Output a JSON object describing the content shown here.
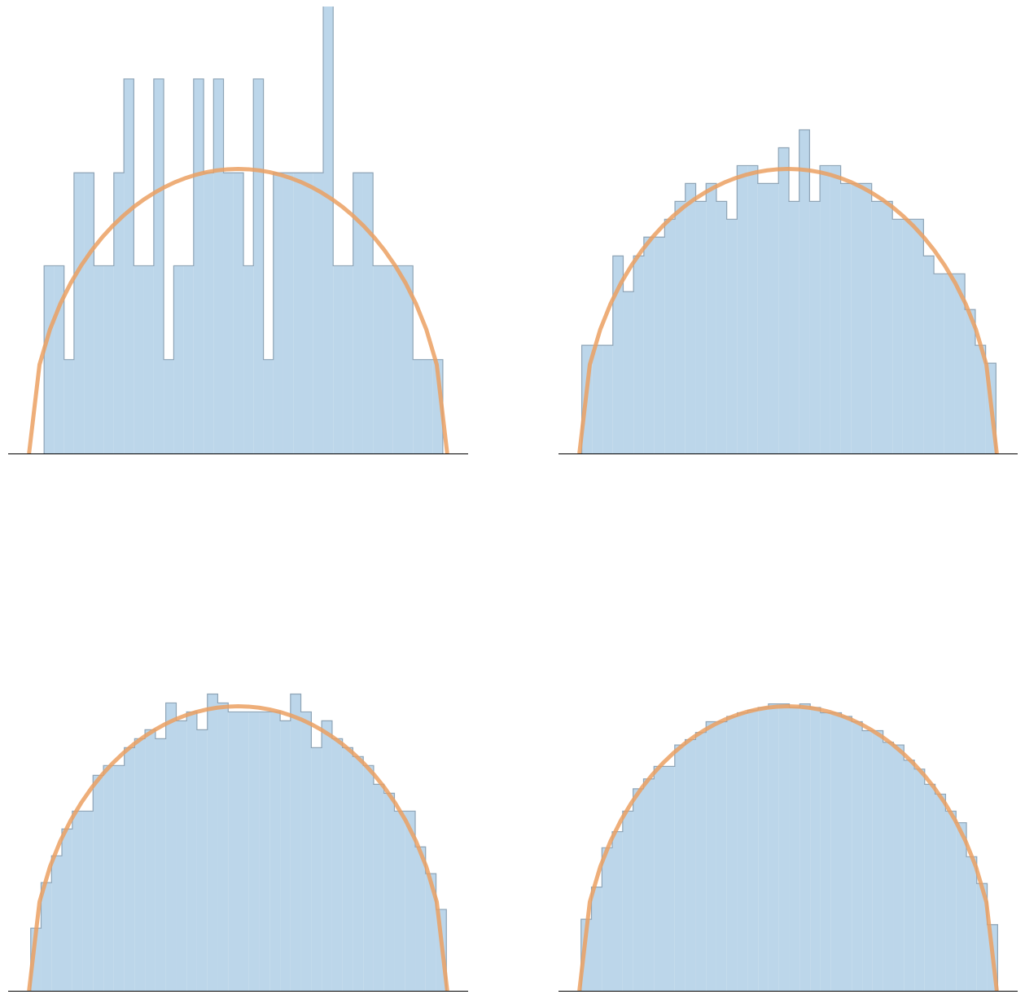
{
  "chart_data": [
    {
      "type": "histogram",
      "color": "#bcd6ea",
      "edge_color": "#8ea4b6",
      "xlim": [
        -2.2,
        2.2
      ],
      "ylim": [
        0,
        0.5
      ],
      "bins": [
        -1.856,
        -1.761,
        -1.665,
        -1.57,
        -1.475,
        -1.379,
        -1.284,
        -1.189,
        -1.093,
        -0.998,
        -0.903,
        -0.807,
        -0.712,
        -0.616,
        -0.521,
        -0.426,
        -0.33,
        -0.235,
        -0.14,
        -0.044,
        0.051,
        0.146,
        0.242,
        0.337,
        0.432,
        0.528,
        0.623,
        0.718,
        0.814,
        0.909,
        1.004,
        1.1,
        1.195,
        1.29,
        1.386,
        1.481,
        1.577,
        1.672,
        1.767,
        1.863,
        1.958
      ],
      "values": [
        0.21,
        0.21,
        0.105,
        0.314,
        0.314,
        0.21,
        0.21,
        0.314,
        0.419,
        0.21,
        0.21,
        0.419,
        0.105,
        0.21,
        0.21,
        0.419,
        0.314,
        0.419,
        0.314,
        0.314,
        0.21,
        0.419,
        0.105,
        0.314,
        0.314,
        0.314,
        0.314,
        0.314,
        0.524,
        0.21,
        0.21,
        0.314,
        0.314,
        0.21,
        0.21,
        0.21,
        0.21,
        0.105,
        0.105,
        0.105
      ],
      "line": {
        "color": "#eba062",
        "x": [
          -2,
          -1.9,
          -1.8,
          -1.7,
          -1.6,
          -1.5,
          -1.4,
          -1.3,
          -1.2,
          -1.1,
          -1,
          -0.9,
          -0.8,
          -0.7,
          -0.6,
          -0.5,
          -0.4,
          -0.3,
          -0.2,
          -0.1,
          0,
          0.1,
          0.2,
          0.3,
          0.4,
          0.5,
          0.6,
          0.7,
          0.8,
          0.9,
          1,
          1.1,
          1.2,
          1.3,
          1.4,
          1.5,
          1.6,
          1.7,
          1.8,
          1.9,
          2
        ],
        "y": [
          0,
          0.0994,
          0.1387,
          0.1677,
          0.191,
          0.2105,
          0.2273,
          0.2419,
          0.2546,
          0.2658,
          0.2757,
          0.2843,
          0.2917,
          0.2982,
          0.3037,
          0.3082,
          0.3119,
          0.3147,
          0.3167,
          0.3179,
          0.3183,
          0.3179,
          0.3167,
          0.3147,
          0.3119,
          0.3082,
          0.3037,
          0.2982,
          0.2917,
          0.2843,
          0.2757,
          0.2658,
          0.2546,
          0.2419,
          0.2273,
          0.2105,
          0.191,
          0.1677,
          0.1387,
          0.0994,
          0
        ]
      }
    },
    {
      "type": "histogram",
      "color": "#bcd6ea",
      "edge_color": "#8ea4b6",
      "xlim": [
        -2.2,
        2.2
      ],
      "ylim": [
        0,
        0.5
      ],
      "bins": [
        -1.977,
        -1.878,
        -1.778,
        -1.679,
        -1.58,
        -1.481,
        -1.382,
        -1.282,
        -1.183,
        -1.084,
        -0.985,
        -0.885,
        -0.786,
        -0.687,
        -0.588,
        -0.489,
        -0.389,
        -0.29,
        -0.191,
        -0.092,
        0.008,
        0.107,
        0.206,
        0.305,
        0.405,
        0.504,
        0.603,
        0.702,
        0.801,
        0.901,
        1.0,
        1.099,
        1.198,
        1.298,
        1.397,
        1.496,
        1.595,
        1.694,
        1.794,
        1.893,
        1.992
      ],
      "values": [
        0.121,
        0.121,
        0.121,
        0.221,
        0.181,
        0.221,
        0.242,
        0.242,
        0.262,
        0.282,
        0.302,
        0.282,
        0.302,
        0.282,
        0.262,
        0.322,
        0.322,
        0.302,
        0.302,
        0.342,
        0.282,
        0.362,
        0.282,
        0.322,
        0.322,
        0.302,
        0.302,
        0.302,
        0.282,
        0.282,
        0.262,
        0.262,
        0.262,
        0.221,
        0.201,
        0.201,
        0.201,
        0.161,
        0.121,
        0.101
      ],
      "line": {
        "color": "#eba062",
        "x": [
          -2,
          -1.9,
          -1.8,
          -1.7,
          -1.6,
          -1.5,
          -1.4,
          -1.3,
          -1.2,
          -1.1,
          -1,
          -0.9,
          -0.8,
          -0.7,
          -0.6,
          -0.5,
          -0.4,
          -0.3,
          -0.2,
          -0.1,
          0,
          0.1,
          0.2,
          0.3,
          0.4,
          0.5,
          0.6,
          0.7,
          0.8,
          0.9,
          1,
          1.1,
          1.2,
          1.3,
          1.4,
          1.5,
          1.6,
          1.7,
          1.8,
          1.9,
          2
        ],
        "y": [
          0,
          0.0994,
          0.1387,
          0.1677,
          0.191,
          0.2105,
          0.2273,
          0.2419,
          0.2546,
          0.2658,
          0.2757,
          0.2843,
          0.2917,
          0.2982,
          0.3037,
          0.3082,
          0.3119,
          0.3147,
          0.3167,
          0.3179,
          0.3183,
          0.3179,
          0.3167,
          0.3147,
          0.3119,
          0.3082,
          0.3037,
          0.2982,
          0.2917,
          0.2843,
          0.2757,
          0.2658,
          0.2546,
          0.2419,
          0.2273,
          0.2105,
          0.191,
          0.1677,
          0.1387,
          0.0994,
          0
        ]
      }
    },
    {
      "type": "histogram",
      "color": "#bcd6ea",
      "edge_color": "#8ea4b6",
      "xlim": [
        -2.2,
        2.2
      ],
      "ylim": [
        0,
        0.5
      ],
      "bins": [
        -1.984,
        -1.885,
        -1.785,
        -1.686,
        -1.586,
        -1.487,
        -1.388,
        -1.288,
        -1.189,
        -1.089,
        -0.99,
        -0.891,
        -0.791,
        -0.692,
        -0.592,
        -0.493,
        -0.394,
        -0.294,
        -0.195,
        -0.095,
        0.004,
        0.103,
        0.203,
        0.302,
        0.402,
        0.501,
        0.6,
        0.7,
        0.799,
        0.899,
        0.998,
        1.097,
        1.197,
        1.296,
        1.396,
        1.495,
        1.594,
        1.694,
        1.793,
        1.893,
        1.992
      ],
      "values": [
        0.07,
        0.121,
        0.151,
        0.181,
        0.201,
        0.201,
        0.241,
        0.252,
        0.252,
        0.272,
        0.282,
        0.292,
        0.282,
        0.322,
        0.302,
        0.312,
        0.292,
        0.332,
        0.322,
        0.312,
        0.312,
        0.312,
        0.312,
        0.312,
        0.302,
        0.332,
        0.312,
        0.272,
        0.302,
        0.282,
        0.272,
        0.262,
        0.252,
        0.231,
        0.221,
        0.201,
        0.201,
        0.161,
        0.131,
        0.091
      ],
      "line": {
        "color": "#eba062",
        "x": [
          -2,
          -1.9,
          -1.8,
          -1.7,
          -1.6,
          -1.5,
          -1.4,
          -1.3,
          -1.2,
          -1.1,
          -1,
          -0.9,
          -0.8,
          -0.7,
          -0.6,
          -0.5,
          -0.4,
          -0.3,
          -0.2,
          -0.1,
          0,
          0.1,
          0.2,
          0.3,
          0.4,
          0.5,
          0.6,
          0.7,
          0.8,
          0.9,
          1,
          1.1,
          1.2,
          1.3,
          1.4,
          1.5,
          1.6,
          1.7,
          1.8,
          1.9,
          2
        ],
        "y": [
          0,
          0.0994,
          0.1387,
          0.1677,
          0.191,
          0.2105,
          0.2273,
          0.2419,
          0.2546,
          0.2658,
          0.2757,
          0.2843,
          0.2917,
          0.2982,
          0.3037,
          0.3082,
          0.3119,
          0.3147,
          0.3167,
          0.3179,
          0.3183,
          0.3179,
          0.3167,
          0.3147,
          0.3119,
          0.3082,
          0.3037,
          0.2982,
          0.2917,
          0.2843,
          0.2757,
          0.2658,
          0.2546,
          0.2419,
          0.2273,
          0.2105,
          0.191,
          0.1677,
          0.1387,
          0.0994,
          0
        ]
      }
    },
    {
      "type": "histogram",
      "color": "#bcd6ea",
      "edge_color": "#8ea4b6",
      "xlim": [
        -2.2,
        2.2
      ],
      "ylim": [
        0,
        0.5
      ],
      "bins": [
        -1.984,
        -1.884,
        -1.784,
        -1.685,
        -1.585,
        -1.485,
        -1.385,
        -1.285,
        -1.186,
        -1.086,
        -0.986,
        -0.886,
        -0.786,
        -0.687,
        -0.587,
        -0.487,
        -0.387,
        -0.287,
        -0.188,
        -0.088,
        0.012,
        0.112,
        0.212,
        0.311,
        0.411,
        0.511,
        0.611,
        0.711,
        0.81,
        0.91,
        1.01,
        1.11,
        1.21,
        1.309,
        1.409,
        1.509,
        1.609,
        1.709,
        1.808,
        1.908,
        2.008
      ],
      "values": [
        0.08,
        0.116,
        0.16,
        0.178,
        0.201,
        0.226,
        0.237,
        0.251,
        0.251,
        0.275,
        0.281,
        0.289,
        0.301,
        0.301,
        0.307,
        0.311,
        0.314,
        0.317,
        0.321,
        0.321,
        0.317,
        0.321,
        0.317,
        0.311,
        0.311,
        0.307,
        0.301,
        0.291,
        0.291,
        0.278,
        0.275,
        0.258,
        0.248,
        0.231,
        0.22,
        0.201,
        0.188,
        0.15,
        0.12,
        0.074
      ],
      "line": {
        "color": "#eba062",
        "x": [
          -2,
          -1.9,
          -1.8,
          -1.7,
          -1.6,
          -1.5,
          -1.4,
          -1.3,
          -1.2,
          -1.1,
          -1,
          -0.9,
          -0.8,
          -0.7,
          -0.6,
          -0.5,
          -0.4,
          -0.3,
          -0.2,
          -0.1,
          0,
          0.1,
          0.2,
          0.3,
          0.4,
          0.5,
          0.6,
          0.7,
          0.8,
          0.9,
          1,
          1.1,
          1.2,
          1.3,
          1.4,
          1.5,
          1.6,
          1.7,
          1.8,
          1.9,
          2
        ],
        "y": [
          0,
          0.0994,
          0.1387,
          0.1677,
          0.191,
          0.2105,
          0.2273,
          0.2419,
          0.2546,
          0.2658,
          0.2757,
          0.2843,
          0.2917,
          0.2982,
          0.3037,
          0.3082,
          0.3119,
          0.3147,
          0.3167,
          0.3179,
          0.3183,
          0.3179,
          0.3167,
          0.3147,
          0.3119,
          0.3082,
          0.3037,
          0.2982,
          0.2917,
          0.2843,
          0.2757,
          0.2658,
          0.2546,
          0.2419,
          0.2273,
          0.2105,
          0.191,
          0.1677,
          0.1387,
          0.0994,
          0
        ]
      }
    }
  ]
}
